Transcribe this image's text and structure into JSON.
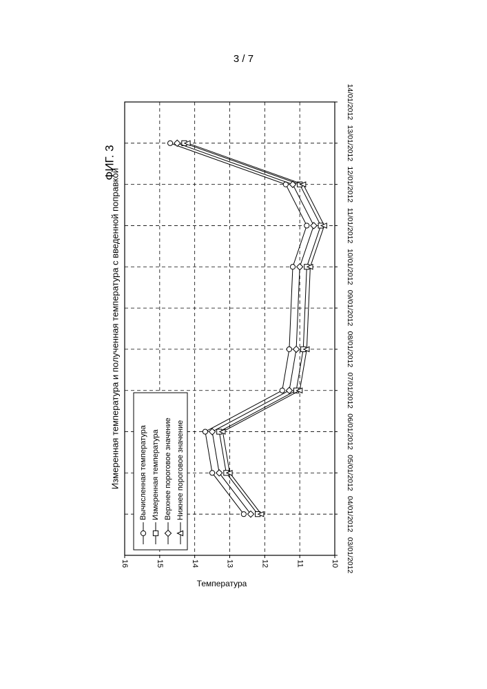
{
  "page": {
    "number": "3 / 7"
  },
  "figure": {
    "label": "ФИГ. 3"
  },
  "chart_data": {
    "type": "line",
    "title": "Измеренная температура и полученная температура с введенной поправкой",
    "ylabel": "Температура",
    "xlabel": "",
    "ylim": [
      10,
      16
    ],
    "yticks": [
      10,
      11,
      12,
      13,
      14,
      15,
      16
    ],
    "x_categories": [
      "03/01/2012",
      "04/01/2012",
      "05/01/2012",
      "06/01/2012",
      "07/01/2012",
      "08/01/2012",
      "09/01/2012",
      "10/01/2012",
      "11/01/2012",
      "12/01/2012",
      "13/01/2012",
      "14/01/2012"
    ],
    "x": [
      "04/01/2012",
      "05/01/2012",
      "06/01/2012",
      "07/01/2012",
      "08/01/2012",
      "10/01/2012",
      "11/01/2012",
      "12/01/2012",
      "13/01/2012"
    ],
    "grid": true,
    "legend_position": "bottom-left",
    "series": [
      {
        "name": "Вычисленная температура",
        "marker": "circle",
        "values": [
          12.6,
          13.5,
          13.7,
          11.5,
          11.3,
          11.2,
          10.8,
          11.4,
          14.7
        ]
      },
      {
        "name": "Измеренная температура",
        "marker": "square",
        "values": [
          12.2,
          13.1,
          13.3,
          11.1,
          10.9,
          10.8,
          10.4,
          11.0,
          14.3
        ]
      },
      {
        "name": "Верхнее пороговое значение",
        "marker": "diamond",
        "values": [
          12.4,
          13.3,
          13.5,
          11.3,
          11.1,
          11.0,
          10.6,
          11.2,
          14.5
        ]
      },
      {
        "name": "Нижнее пороговое значение",
        "marker": "triangle",
        "values": [
          12.1,
          13.0,
          13.2,
          11.0,
          10.8,
          10.7,
          10.3,
          10.9,
          14.2
        ]
      }
    ]
  }
}
